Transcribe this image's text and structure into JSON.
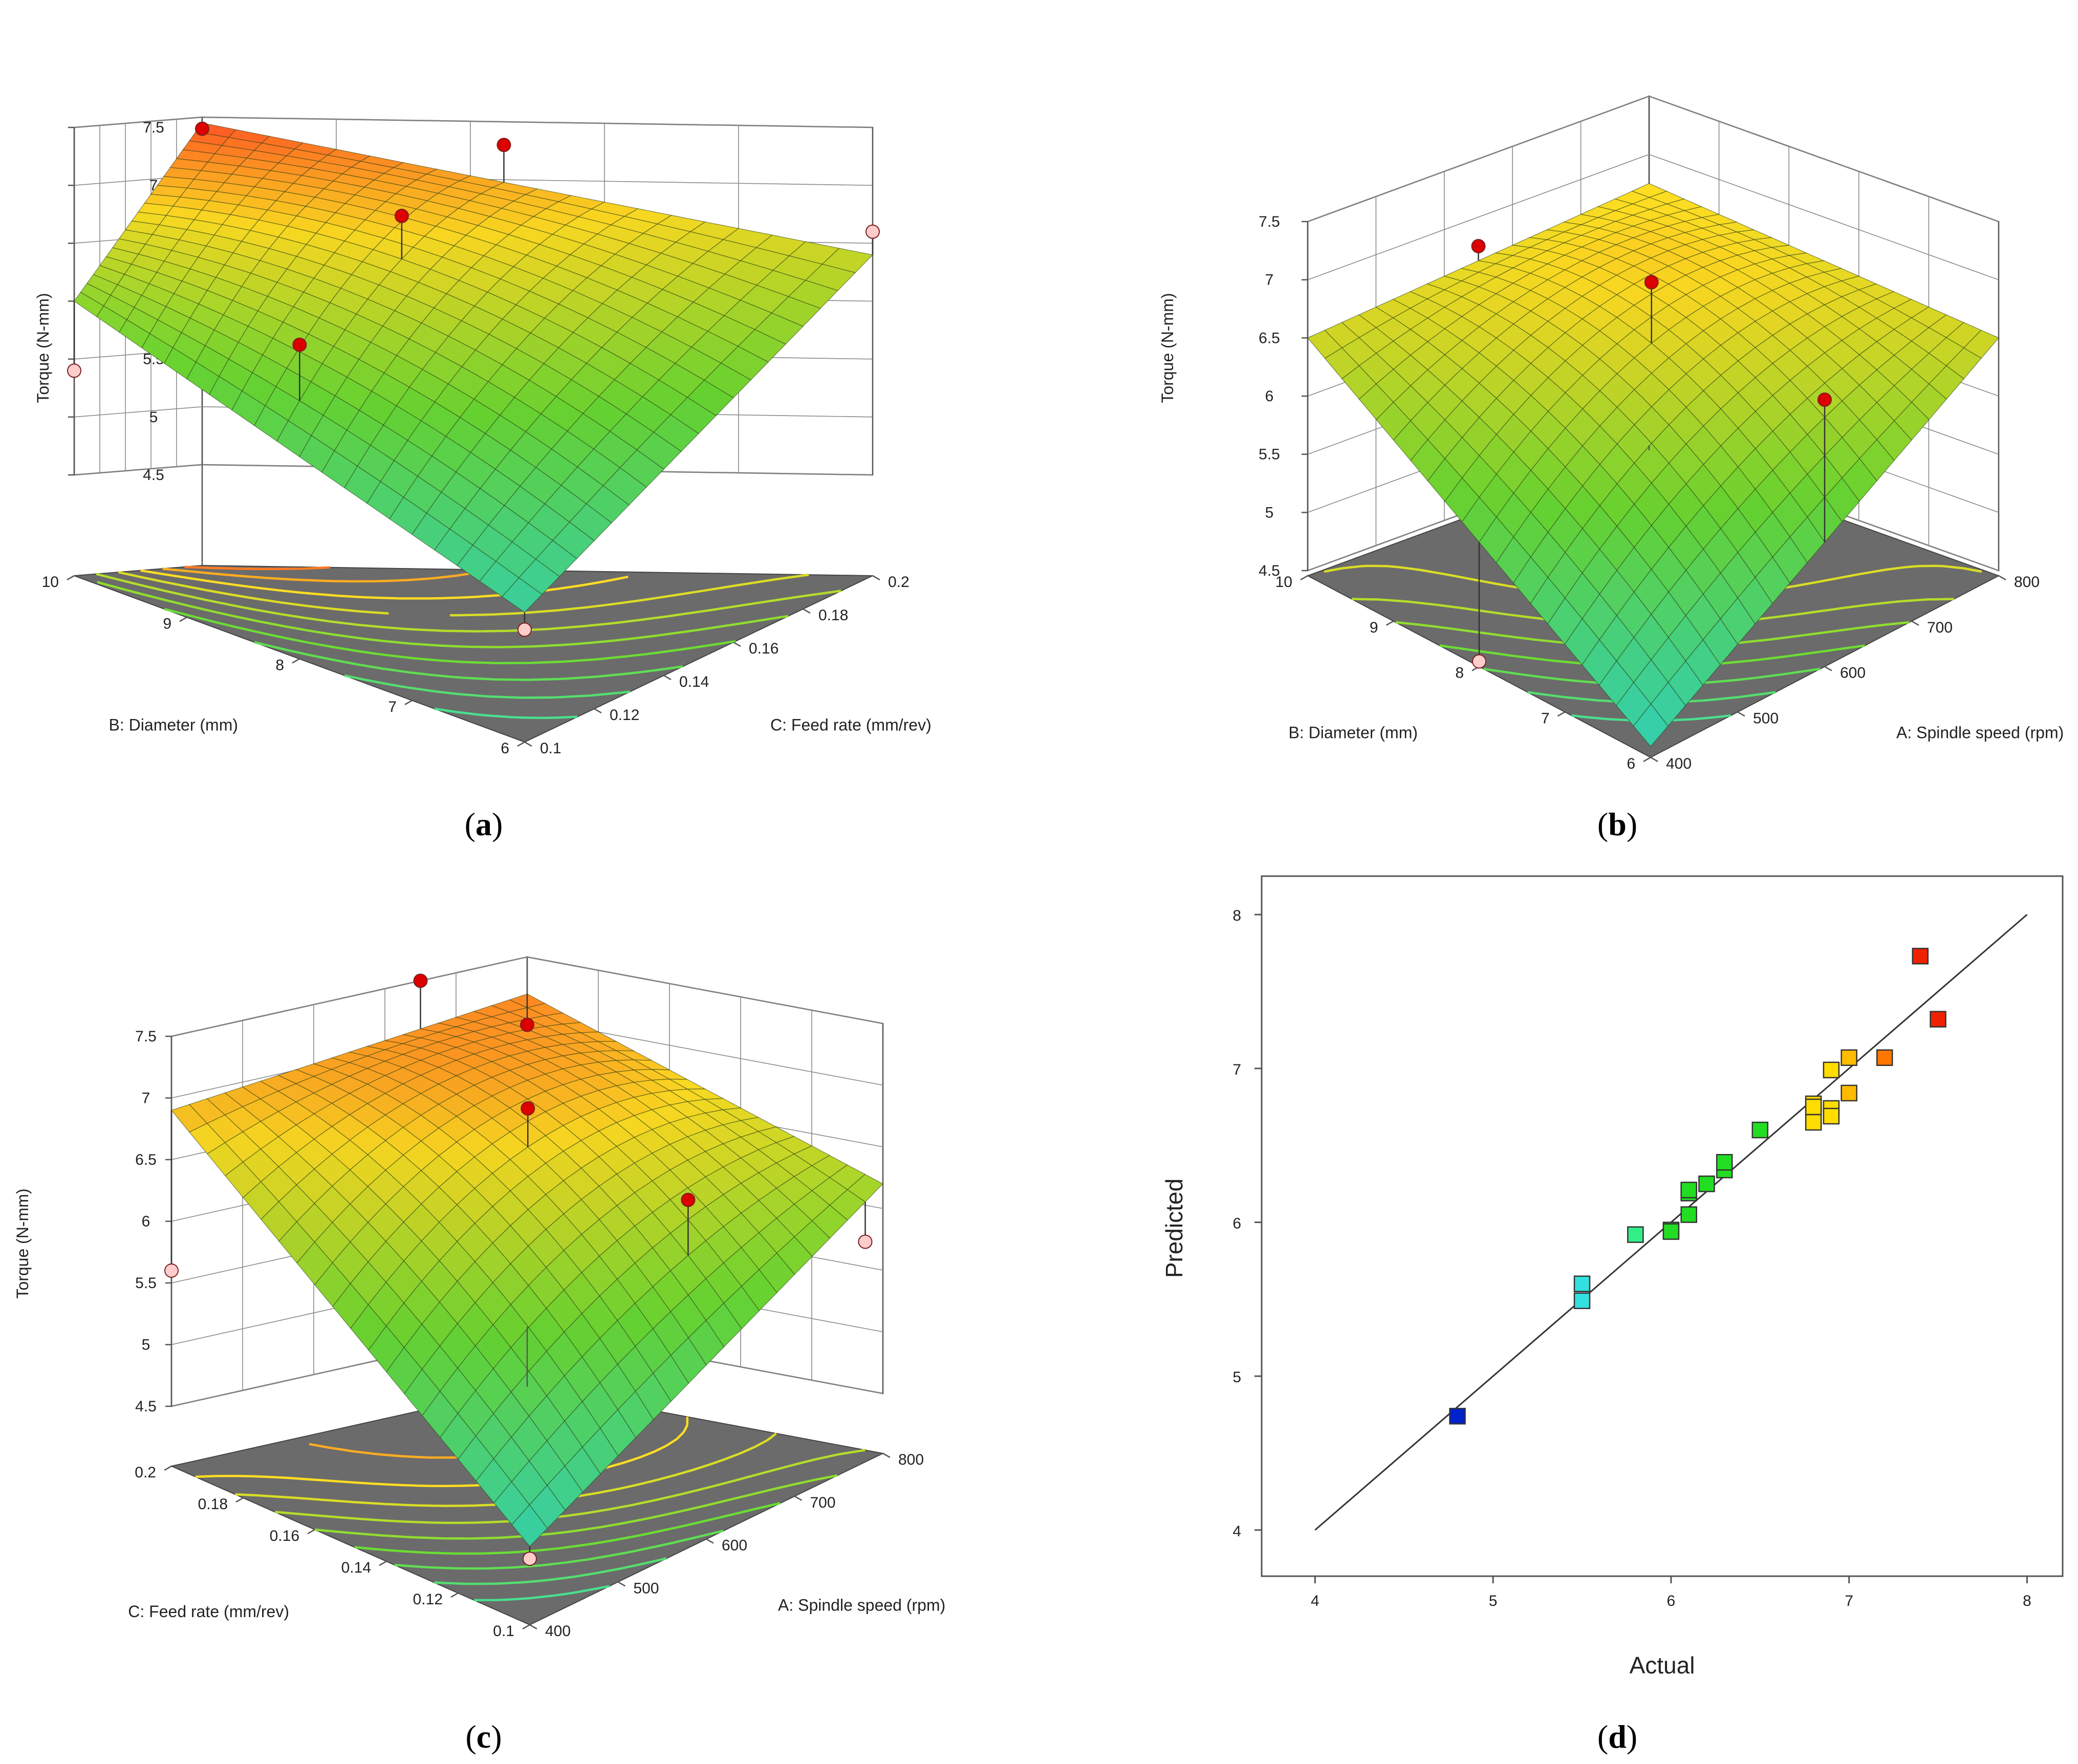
{
  "colors": {
    "surface_low": "#33e0c8",
    "surface_mid": "#6bdd33",
    "surface_high": "#ffdd22",
    "surface_top": "#ff4a22",
    "floor": "#6b6b6b",
    "design_point_above": "#dd0000",
    "design_point_below": "#ffcccc"
  },
  "chart_data": [
    {
      "id": "a",
      "type": "surface3d",
      "caption": "a",
      "zlabel": "Torque (N-mm)",
      "zticks": [
        "7.5",
        "7",
        "6.5",
        "6",
        "5.5",
        "5",
        "4.5"
      ],
      "zlim": [
        4.5,
        7.5
      ],
      "left_axis": {
        "label": "B: Diameter (mm)",
        "ticks": [
          "10",
          "9",
          "8",
          "7",
          "6"
        ]
      },
      "right_axis": {
        "label": "C: Feed rate (mm/rev)",
        "ticks": [
          "0.1",
          "0.12",
          "0.14",
          "0.16",
          "0.18",
          "0.2"
        ]
      },
      "corner_values": {
        "back": 7.45,
        "left": 6.0,
        "right": 6.4,
        "front": 4.75
      },
      "curvature": 0.35,
      "design_points": [
        {
          "x_norm": 0.0,
          "y_norm": 0.0,
          "torque": 7.4,
          "above": true
        },
        {
          "x_norm": 0.45,
          "y_norm": 0.0,
          "torque": 7.3,
          "above": true
        },
        {
          "x_norm": 0.45,
          "y_norm": 0.45,
          "torque": 7.0,
          "above": true
        },
        {
          "x_norm": 0.45,
          "y_norm": 0.9,
          "torque": 6.2,
          "above": true
        },
        {
          "x_norm": 1.0,
          "y_norm": 0.0,
          "torque": 6.6,
          "above": false
        },
        {
          "x_norm": 0.0,
          "y_norm": 1.0,
          "torque": 5.4,
          "above": false
        },
        {
          "x_norm": 1.0,
          "y_norm": 0.45,
          "torque": 5.8,
          "above": false
        },
        {
          "x_norm": 1.0,
          "y_norm": 1.0,
          "torque": 4.6,
          "above": false
        }
      ]
    },
    {
      "id": "b",
      "type": "surface3d",
      "caption": "b",
      "zlabel": "Torque (N-mm)",
      "zticks": [
        "7.5",
        "7",
        "6.5",
        "6",
        "5.5",
        "5",
        "4.5"
      ],
      "zlim": [
        4.5,
        7.5
      ],
      "left_axis": {
        "label": "B: Diameter (mm)",
        "ticks": [
          "10",
          "9",
          "8",
          "7",
          "6"
        ]
      },
      "right_axis": {
        "label": "A: Spindle speed (rpm)",
        "ticks": [
          "400",
          "500",
          "600",
          "700",
          "800"
        ]
      },
      "corner_values": {
        "back": 6.75,
        "left": 6.5,
        "right": 6.5,
        "front": 4.55
      },
      "curvature": 0.5,
      "design_points": [
        {
          "x_norm": 0.5,
          "y_norm": 0.5,
          "torque": 7.1,
          "above": true
        },
        {
          "x_norm": 0.0,
          "y_norm": 0.5,
          "torque": 6.75,
          "above": true
        },
        {
          "x_norm": 1.0,
          "y_norm": 0.5,
          "torque": 6.75,
          "above": true
        },
        {
          "x_norm": 0.5,
          "y_norm": 1.0,
          "torque": 4.5,
          "above": false
        },
        {
          "x_norm": 0.3,
          "y_norm": 0.85,
          "torque": 5.6,
          "above": false
        },
        {
          "x_norm": 0.85,
          "y_norm": 0.3,
          "torque": 5.7,
          "above": false
        }
      ]
    },
    {
      "id": "c",
      "type": "surface3d",
      "caption": "c",
      "zlabel": "Torque (N-mm)",
      "zticks": [
        "7.5",
        "7",
        "6.5",
        "6",
        "5.5",
        "5",
        "4.5"
      ],
      "zlim": [
        4.5,
        7.5
      ],
      "left_axis": {
        "label": "C: Feed rate (mm/rev)",
        "ticks": [
          "0.2",
          "0.18",
          "0.16",
          "0.14",
          "0.12",
          "0.1"
        ]
      },
      "right_axis": {
        "label": "A: Spindle speed (rpm)",
        "ticks": [
          "400",
          "500",
          "600",
          "700",
          "800"
        ]
      },
      "corner_values": {
        "back": 7.2,
        "left": 6.9,
        "right": 6.2,
        "front": 4.65
      },
      "curvature": 0.5,
      "design_points": [
        {
          "x_norm": 0.0,
          "y_norm": 0.3,
          "torque": 7.5,
          "above": true
        },
        {
          "x_norm": 0.0,
          "y_norm": 0.0,
          "torque": 6.95,
          "above": true
        },
        {
          "x_norm": 0.5,
          "y_norm": 0.5,
          "torque": 7.05,
          "above": true
        },
        {
          "x_norm": 0.85,
          "y_norm": 0.4,
          "torque": 6.5,
          "above": true
        },
        {
          "x_norm": 1.0,
          "y_norm": 0.05,
          "torque": 5.8,
          "above": false
        },
        {
          "x_norm": 0.0,
          "y_norm": 1.0,
          "torque": 5.6,
          "above": false
        },
        {
          "x_norm": 1.0,
          "y_norm": 1.0,
          "torque": 4.55,
          "above": false
        }
      ]
    },
    {
      "id": "d",
      "type": "scatter",
      "caption": "d",
      "xlabel": "Actual",
      "ylabel": "Predicted",
      "xlim": [
        3.7,
        8.2
      ],
      "ylim": [
        3.7,
        8.25
      ],
      "xticks": [
        4,
        5,
        6,
        7,
        8
      ],
      "yticks": [
        4,
        5,
        6,
        7,
        8
      ],
      "reference_line": [
        [
          4,
          4
        ],
        [
          8,
          8
        ]
      ],
      "points": [
        {
          "x": 4.8,
          "y": 4.74,
          "color": "#0022cc"
        },
        {
          "x": 5.5,
          "y": 5.6,
          "color": "#33e0e0"
        },
        {
          "x": 5.5,
          "y": 5.49,
          "color": "#33e0e0"
        },
        {
          "x": 5.8,
          "y": 5.92,
          "color": "#33ee88"
        },
        {
          "x": 6.0,
          "y": 5.95,
          "color": "#22dd22"
        },
        {
          "x": 6.0,
          "y": 5.94,
          "color": "#22dd22"
        },
        {
          "x": 6.1,
          "y": 6.05,
          "color": "#22dd22"
        },
        {
          "x": 6.1,
          "y": 6.19,
          "color": "#22dd22"
        },
        {
          "x": 6.1,
          "y": 6.21,
          "color": "#22dd22"
        },
        {
          "x": 6.2,
          "y": 6.25,
          "color": "#22dd22"
        },
        {
          "x": 6.3,
          "y": 6.34,
          "color": "#22dd22"
        },
        {
          "x": 6.3,
          "y": 6.39,
          "color": "#22dd22"
        },
        {
          "x": 6.5,
          "y": 6.6,
          "color": "#22dd22"
        },
        {
          "x": 6.8,
          "y": 6.77,
          "color": "#ffdd00"
        },
        {
          "x": 6.8,
          "y": 6.75,
          "color": "#ffdd00"
        },
        {
          "x": 6.8,
          "y": 6.65,
          "color": "#ffdd00"
        },
        {
          "x": 6.9,
          "y": 6.99,
          "color": "#ffdd00"
        },
        {
          "x": 6.9,
          "y": 6.74,
          "color": "#ffdd00"
        },
        {
          "x": 6.9,
          "y": 6.69,
          "color": "#ffdd00"
        },
        {
          "x": 7.0,
          "y": 7.07,
          "color": "#ffbb00"
        },
        {
          "x": 7.0,
          "y": 6.84,
          "color": "#ffbb00"
        },
        {
          "x": 7.2,
          "y": 7.07,
          "color": "#ff7700"
        },
        {
          "x": 7.4,
          "y": 7.73,
          "color": "#ee2200"
        },
        {
          "x": 7.5,
          "y": 7.32,
          "color": "#ee2200"
        }
      ]
    }
  ]
}
